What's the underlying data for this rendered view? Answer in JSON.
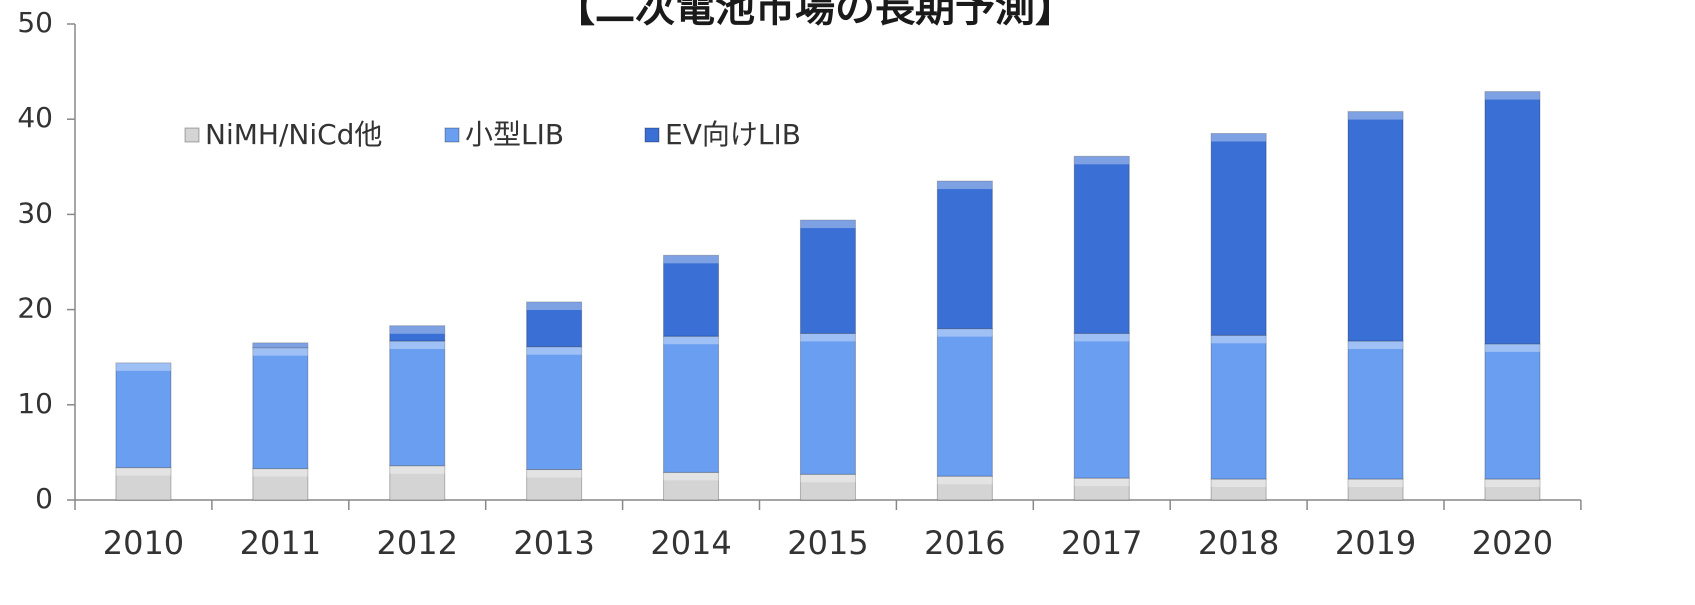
{
  "chart_data": {
    "type": "stacked_bar",
    "title": "【二次電池市場の長期予測】",
    "categories": [
      "2010",
      "2011",
      "2012",
      "2013",
      "2014",
      "2015",
      "2016",
      "2017",
      "2018",
      "2019",
      "2020"
    ],
    "series": [
      {
        "name": "NiMH/NiCd他",
        "color": "#d4d4d4",
        "values": [
          3.4,
          3.3,
          3.6,
          3.2,
          2.9,
          2.7,
          2.5,
          2.3,
          2.2,
          2.2,
          2.2
        ]
      },
      {
        "name": "小型LIB",
        "color": "#6a9ef0",
        "values": [
          11.0,
          12.7,
          13.1,
          12.9,
          14.3,
          14.8,
          15.5,
          15.2,
          15.1,
          14.5,
          14.2
        ]
      },
      {
        "name": "EV向けLIB",
        "color": "#3a6fd6",
        "values": [
          0,
          0.5,
          1.6,
          4.7,
          8.5,
          11.9,
          15.5,
          18.6,
          21.2,
          24.1,
          26.5
        ]
      }
    ],
    "ylim": [
      0,
      50
    ],
    "yticks": [
      0,
      10,
      20,
      30,
      40,
      50
    ],
    "grid": false
  }
}
